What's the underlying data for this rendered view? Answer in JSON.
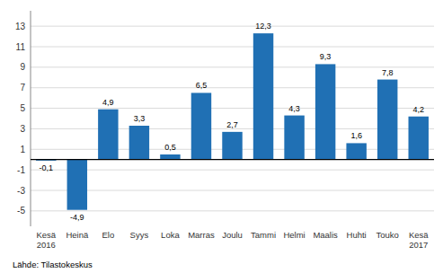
{
  "chart_data": {
    "type": "bar",
    "categories": [
      "Kesä\n2016",
      "Heinä",
      "Elo",
      "Syys",
      "Loka",
      "Marras",
      "Joulu",
      "Tammi",
      "Helmi",
      "Maalis",
      "Huhti",
      "Touko",
      "Kesä\n2017"
    ],
    "values": [
      -0.1,
      -4.9,
      4.9,
      3.3,
      0.5,
      6.5,
      2.7,
      12.3,
      4.3,
      9.3,
      1.6,
      7.8,
      4.2
    ],
    "value_labels": [
      "-0,1",
      "-4,9",
      "4,9",
      "3,3",
      "0,5",
      "6,5",
      "2,7",
      "12,3",
      "4,3",
      "9,3",
      "1,6",
      "7,8",
      "4,2"
    ],
    "color": "#2070B4",
    "ylim": [
      -6.5,
      14.5
    ],
    "yticks": [
      -5,
      -3,
      -1,
      1,
      3,
      5,
      7,
      9,
      11,
      13
    ],
    "grid": true,
    "data_labels": true,
    "source": "Lähde: Tilastokeskus"
  }
}
